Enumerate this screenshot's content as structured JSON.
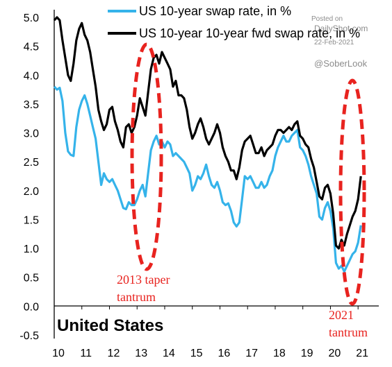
{
  "chart_data": {
    "type": "line",
    "title": "",
    "region_label": "United States",
    "xlabel": "",
    "ylabel": "",
    "xlim": [
      2010.0,
      2021.75
    ],
    "ylim": [
      -0.5,
      5.0
    ],
    "yticks": [
      "5.0",
      "4.5",
      "4.0",
      "3.5",
      "3.0",
      "2.5",
      "2.0",
      "1.5",
      "1.0",
      "0.5",
      "0.0",
      "-0.5"
    ],
    "xticks": [
      "10",
      "11",
      "12",
      "13",
      "14",
      "15",
      "16",
      "17",
      "18",
      "19",
      "20",
      "21"
    ],
    "grid": false,
    "legend_position": "top",
    "series": [
      {
        "name": "US 10-year swap rate, in %",
        "color": "#35b3ea",
        "points": [
          [
            2010.0,
            3.8
          ],
          [
            2010.1,
            3.75
          ],
          [
            2010.2,
            3.78
          ],
          [
            2010.3,
            3.55
          ],
          [
            2010.4,
            3.0
          ],
          [
            2010.5,
            2.68
          ],
          [
            2010.6,
            2.62
          ],
          [
            2010.7,
            2.6
          ],
          [
            2010.8,
            3.1
          ],
          [
            2010.9,
            3.4
          ],
          [
            2011.0,
            3.55
          ],
          [
            2011.1,
            3.65
          ],
          [
            2011.2,
            3.5
          ],
          [
            2011.3,
            3.3
          ],
          [
            2011.4,
            3.1
          ],
          [
            2011.5,
            2.9
          ],
          [
            2011.6,
            2.5
          ],
          [
            2011.7,
            2.1
          ],
          [
            2011.8,
            2.3
          ],
          [
            2011.9,
            2.2
          ],
          [
            2012.0,
            2.15
          ],
          [
            2012.1,
            2.2
          ],
          [
            2012.2,
            2.1
          ],
          [
            2012.3,
            2.0
          ],
          [
            2012.4,
            1.85
          ],
          [
            2012.5,
            1.7
          ],
          [
            2012.6,
            1.68
          ],
          [
            2012.7,
            1.8
          ],
          [
            2012.8,
            1.75
          ],
          [
            2012.9,
            1.75
          ],
          [
            2013.0,
            1.85
          ],
          [
            2013.1,
            2.0
          ],
          [
            2013.2,
            2.1
          ],
          [
            2013.3,
            1.9
          ],
          [
            2013.4,
            2.3
          ],
          [
            2013.5,
            2.7
          ],
          [
            2013.6,
            2.85
          ],
          [
            2013.7,
            2.95
          ],
          [
            2013.8,
            2.8
          ],
          [
            2013.9,
            2.85
          ],
          [
            2014.0,
            2.75
          ],
          [
            2014.1,
            2.85
          ],
          [
            2014.2,
            2.8
          ],
          [
            2014.3,
            2.6
          ],
          [
            2014.4,
            2.65
          ],
          [
            2014.5,
            2.6
          ],
          [
            2014.6,
            2.55
          ],
          [
            2014.7,
            2.5
          ],
          [
            2014.8,
            2.4
          ],
          [
            2014.9,
            2.3
          ],
          [
            2015.0,
            2.0
          ],
          [
            2015.1,
            2.1
          ],
          [
            2015.2,
            2.25
          ],
          [
            2015.3,
            2.2
          ],
          [
            2015.4,
            2.3
          ],
          [
            2015.5,
            2.45
          ],
          [
            2015.6,
            2.25
          ],
          [
            2015.7,
            2.1
          ],
          [
            2015.8,
            2.05
          ],
          [
            2015.9,
            2.15
          ],
          [
            2016.0,
            2.0
          ],
          [
            2016.1,
            1.8
          ],
          [
            2016.2,
            1.75
          ],
          [
            2016.3,
            1.78
          ],
          [
            2016.4,
            1.65
          ],
          [
            2016.5,
            1.45
          ],
          [
            2016.6,
            1.38
          ],
          [
            2016.7,
            1.45
          ],
          [
            2016.8,
            1.85
          ],
          [
            2016.9,
            2.25
          ],
          [
            2017.0,
            2.2
          ],
          [
            2017.1,
            2.25
          ],
          [
            2017.2,
            2.15
          ],
          [
            2017.3,
            2.05
          ],
          [
            2017.4,
            2.05
          ],
          [
            2017.5,
            2.15
          ],
          [
            2017.6,
            2.05
          ],
          [
            2017.7,
            2.1
          ],
          [
            2017.8,
            2.25
          ],
          [
            2017.9,
            2.35
          ],
          [
            2018.0,
            2.6
          ],
          [
            2018.1,
            2.75
          ],
          [
            2018.2,
            2.85
          ],
          [
            2018.3,
            2.95
          ],
          [
            2018.4,
            2.85
          ],
          [
            2018.5,
            2.85
          ],
          [
            2018.6,
            2.95
          ],
          [
            2018.7,
            3.0
          ],
          [
            2018.8,
            3.05
          ],
          [
            2018.9,
            2.75
          ],
          [
            2019.0,
            2.7
          ],
          [
            2019.1,
            2.6
          ],
          [
            2019.2,
            2.45
          ],
          [
            2019.3,
            2.25
          ],
          [
            2019.4,
            2.1
          ],
          [
            2019.5,
            1.95
          ],
          [
            2019.6,
            1.55
          ],
          [
            2019.7,
            1.5
          ],
          [
            2019.8,
            1.7
          ],
          [
            2019.9,
            1.8
          ],
          [
            2020.0,
            1.65
          ],
          [
            2020.1,
            1.35
          ],
          [
            2020.2,
            0.75
          ],
          [
            2020.3,
            0.65
          ],
          [
            2020.4,
            0.7
          ],
          [
            2020.5,
            0.6
          ],
          [
            2020.6,
            0.7
          ],
          [
            2020.7,
            0.8
          ],
          [
            2020.8,
            0.9
          ],
          [
            2020.9,
            0.95
          ],
          [
            2021.0,
            1.1
          ],
          [
            2021.1,
            1.4
          ]
        ]
      },
      {
        "name": "US 10-year 10-year fwd swap rate, in %",
        "color": "#000000",
        "points": [
          [
            2010.0,
            4.95
          ],
          [
            2010.1,
            5.0
          ],
          [
            2010.2,
            4.95
          ],
          [
            2010.3,
            4.6
          ],
          [
            2010.4,
            4.3
          ],
          [
            2010.5,
            4.0
          ],
          [
            2010.6,
            3.9
          ],
          [
            2010.7,
            4.2
          ],
          [
            2010.8,
            4.6
          ],
          [
            2010.9,
            4.8
          ],
          [
            2011.0,
            4.9
          ],
          [
            2011.1,
            4.7
          ],
          [
            2011.2,
            4.6
          ],
          [
            2011.3,
            4.4
          ],
          [
            2011.4,
            4.1
          ],
          [
            2011.5,
            3.8
          ],
          [
            2011.6,
            3.4
          ],
          [
            2011.7,
            3.2
          ],
          [
            2011.8,
            3.05
          ],
          [
            2011.9,
            3.15
          ],
          [
            2012.0,
            3.4
          ],
          [
            2012.1,
            3.45
          ],
          [
            2012.2,
            3.2
          ],
          [
            2012.3,
            3.05
          ],
          [
            2012.4,
            2.85
          ],
          [
            2012.5,
            2.75
          ],
          [
            2012.6,
            3.1
          ],
          [
            2012.7,
            3.15
          ],
          [
            2012.8,
            3.0
          ],
          [
            2012.9,
            3.1
          ],
          [
            2013.0,
            3.3
          ],
          [
            2013.1,
            3.6
          ],
          [
            2013.2,
            3.45
          ],
          [
            2013.3,
            3.3
          ],
          [
            2013.4,
            3.7
          ],
          [
            2013.5,
            4.1
          ],
          [
            2013.6,
            4.3
          ],
          [
            2013.7,
            4.35
          ],
          [
            2013.8,
            4.2
          ],
          [
            2013.9,
            4.4
          ],
          [
            2014.0,
            4.3
          ],
          [
            2014.1,
            4.2
          ],
          [
            2014.2,
            4.1
          ],
          [
            2014.3,
            3.8
          ],
          [
            2014.4,
            3.9
          ],
          [
            2014.5,
            3.65
          ],
          [
            2014.6,
            3.65
          ],
          [
            2014.7,
            3.6
          ],
          [
            2014.8,
            3.4
          ],
          [
            2014.9,
            3.1
          ],
          [
            2015.0,
            2.9
          ],
          [
            2015.1,
            3.0
          ],
          [
            2015.2,
            3.15
          ],
          [
            2015.3,
            3.25
          ],
          [
            2015.4,
            3.1
          ],
          [
            2015.5,
            2.9
          ],
          [
            2015.6,
            2.8
          ],
          [
            2015.7,
            2.9
          ],
          [
            2015.8,
            3.0
          ],
          [
            2015.9,
            3.15
          ],
          [
            2016.0,
            3.0
          ],
          [
            2016.1,
            2.75
          ],
          [
            2016.2,
            2.6
          ],
          [
            2016.3,
            2.5
          ],
          [
            2016.4,
            2.35
          ],
          [
            2016.5,
            2.35
          ],
          [
            2016.6,
            2.2
          ],
          [
            2016.7,
            2.4
          ],
          [
            2016.8,
            2.7
          ],
          [
            2016.9,
            2.85
          ],
          [
            2017.0,
            2.9
          ],
          [
            2017.1,
            2.95
          ],
          [
            2017.2,
            2.8
          ],
          [
            2017.3,
            2.65
          ],
          [
            2017.4,
            2.65
          ],
          [
            2017.5,
            2.75
          ],
          [
            2017.6,
            2.6
          ],
          [
            2017.7,
            2.7
          ],
          [
            2017.8,
            2.75
          ],
          [
            2017.9,
            2.8
          ],
          [
            2018.0,
            2.95
          ],
          [
            2018.1,
            3.05
          ],
          [
            2018.2,
            3.05
          ],
          [
            2018.3,
            3.0
          ],
          [
            2018.4,
            3.05
          ],
          [
            2018.5,
            3.1
          ],
          [
            2018.6,
            3.05
          ],
          [
            2018.7,
            3.15
          ],
          [
            2018.8,
            3.2
          ],
          [
            2018.9,
            2.95
          ],
          [
            2019.0,
            2.9
          ],
          [
            2019.1,
            2.8
          ],
          [
            2019.2,
            2.75
          ],
          [
            2019.3,
            2.55
          ],
          [
            2019.4,
            2.4
          ],
          [
            2019.5,
            2.15
          ],
          [
            2019.6,
            1.9
          ],
          [
            2019.7,
            1.85
          ],
          [
            2019.8,
            2.05
          ],
          [
            2019.9,
            2.1
          ],
          [
            2020.0,
            1.95
          ],
          [
            2020.1,
            1.6
          ],
          [
            2020.2,
            1.05
          ],
          [
            2020.3,
            1.0
          ],
          [
            2020.4,
            1.15
          ],
          [
            2020.5,
            1.05
          ],
          [
            2020.6,
            1.25
          ],
          [
            2020.7,
            1.4
          ],
          [
            2020.8,
            1.55
          ],
          [
            2020.9,
            1.65
          ],
          [
            2021.0,
            1.85
          ],
          [
            2021.1,
            2.25
          ]
        ]
      }
    ],
    "annotations": [
      {
        "lines": [
          "2013 taper",
          "tantrum"
        ],
        "color": "#e8231f"
      },
      {
        "lines": [
          "2021",
          "tantrum"
        ],
        "color": "#e8231f"
      }
    ]
  },
  "watermark": {
    "posted_on": "Posted on",
    "site": "DailyShot.com",
    "date": "22-Feb-2021",
    "handle": "@SoberLook"
  }
}
